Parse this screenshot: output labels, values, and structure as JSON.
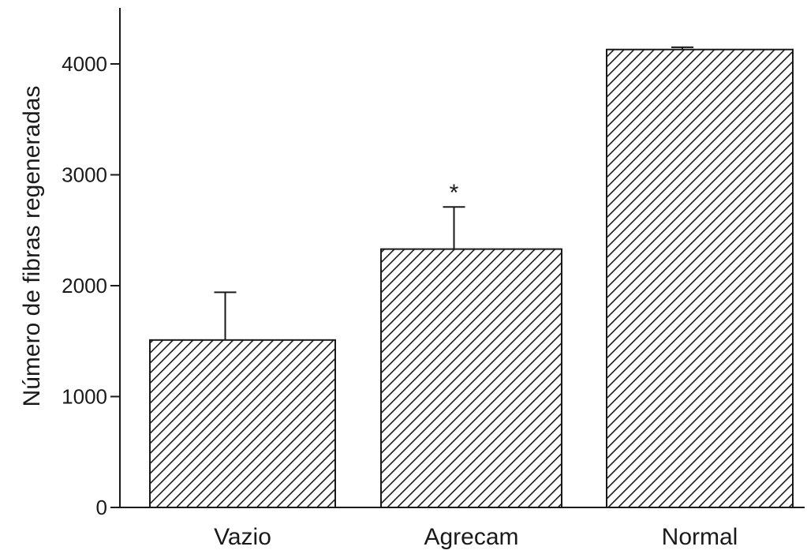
{
  "chart_data": {
    "type": "bar",
    "title": "",
    "xlabel": "",
    "ylabel": "Número de fibras regeneradas",
    "categories": [
      "Vazio",
      "Agrecam",
      "Normal"
    ],
    "values": [
      1510,
      2330,
      4130
    ],
    "error_upper": [
      1940,
      2710,
      4150
    ],
    "annotations": [
      "",
      "*",
      ""
    ],
    "ylim": [
      0,
      4400
    ],
    "yticks": [
      0,
      1000,
      2000,
      3000,
      4000
    ],
    "ytick_labels": [
      "0",
      "1000",
      "2000",
      "3000",
      "4000"
    ],
    "fill_pattern": "diagonal-hatch",
    "colors": {
      "bar_stroke": "#1a1a1a",
      "hatch": "#1a1a1a",
      "background": "#ffffff"
    },
    "grid": false,
    "legend": "none"
  }
}
